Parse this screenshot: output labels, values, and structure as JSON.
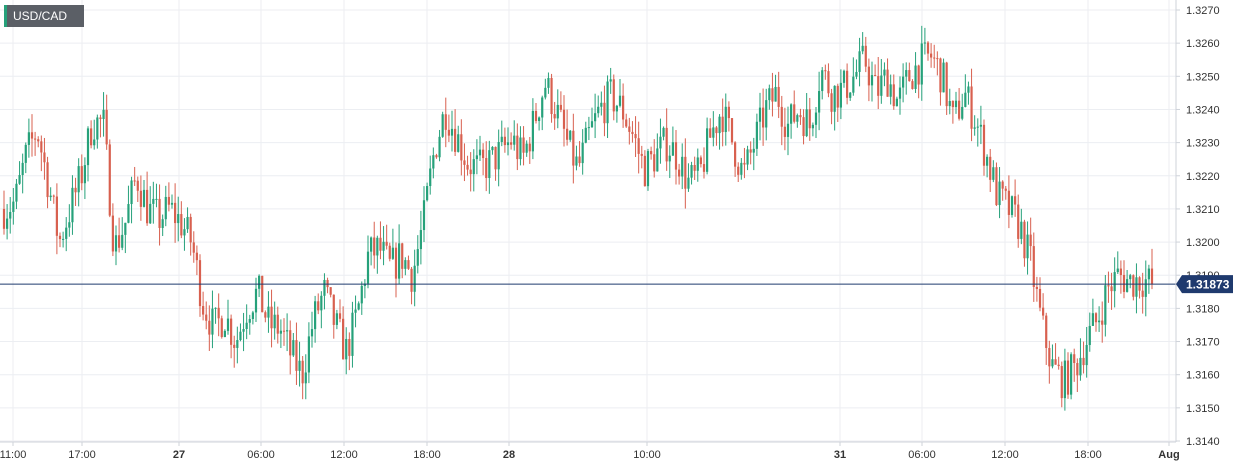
{
  "chart_data": {
    "type": "candlestick",
    "symbol": "USD/CAD",
    "current_price": 1.31873,
    "current_price_label": "1.31873",
    "ylim": [
      1.314,
      1.3272
    ],
    "y_ticks": [
      "1.3270",
      "1.3260",
      "1.3250",
      "1.3240",
      "1.3230",
      "1.3220",
      "1.3210",
      "1.3200",
      "1.3190",
      "1.3180",
      "1.3170",
      "1.3160",
      "1.3150",
      "1.3140"
    ],
    "x_ticks": [
      {
        "label": "11:00",
        "bold": false
      },
      {
        "label": "17:00",
        "bold": false
      },
      {
        "label": "27",
        "bold": true
      },
      {
        "label": "06:00",
        "bold": false
      },
      {
        "label": "12:00",
        "bold": false
      },
      {
        "label": "18:00",
        "bold": false
      },
      {
        "label": "28",
        "bold": true
      },
      {
        "label": "10:00",
        "bold": false
      },
      {
        "label": "31",
        "bold": true
      },
      {
        "label": "06:00",
        "bold": false
      },
      {
        "label": "12:00",
        "bold": false
      },
      {
        "label": "18:00",
        "bold": false
      },
      {
        "label": "Aug",
        "bold": true
      }
    ],
    "grid": true,
    "up_color": "#26a17a",
    "down_color": "#d8604f",
    "price_line_color": "#1f3a6e",
    "close_path": [
      [
        1.321,
        1.3212,
        1.3226,
        1.3234,
        1.3218,
        1.32,
        1.321,
        1.322,
        1.3236,
        1.3236,
        1.3198,
        1.3206,
        1.322,
        1.321,
        1.3207,
        1.321,
        1.3206,
        1.32,
        1.3182,
        1.3174,
        1.3178,
        1.317,
        1.318,
        1.3185,
        1.3175,
        1.3174,
        1.3166,
        1.316,
        1.3176,
        1.3185,
        1.3175,
        1.3167,
        1.3178,
        1.3196,
        1.3198,
        1.3192,
        1.3196,
        1.319,
        1.3206,
        1.3228,
        1.324,
        1.3232,
        1.3224,
        1.3222,
        1.3224,
        1.3227,
        1.3231,
        1.3225,
        1.3236,
        1.3248,
        1.324,
        1.323,
        1.3222,
        1.3232,
        1.324,
        1.3244,
        1.324,
        1.3232,
        1.3222,
        1.3226,
        1.323,
        1.3226,
        1.3218,
        1.322,
        1.3232,
        1.324,
        1.323,
        1.322,
        1.323,
        1.324,
        1.3245,
        1.3235,
        1.324,
        1.3235,
        1.3252,
        1.3245,
        1.3246,
        1.325,
        1.3255,
        1.3245,
        1.325,
        1.3242,
        1.325,
        1.3254,
        1.3256,
        1.325,
        1.3236,
        1.3245,
        1.3237,
        1.3226,
        1.3214,
        1.321,
        1.3205,
        1.3194,
        1.3175,
        1.3162,
        1.3158,
        1.3162,
        1.317,
        1.3176,
        1.3186,
        1.319,
        1.3188,
        1.3189,
        1.31873
      ]
    ]
  }
}
